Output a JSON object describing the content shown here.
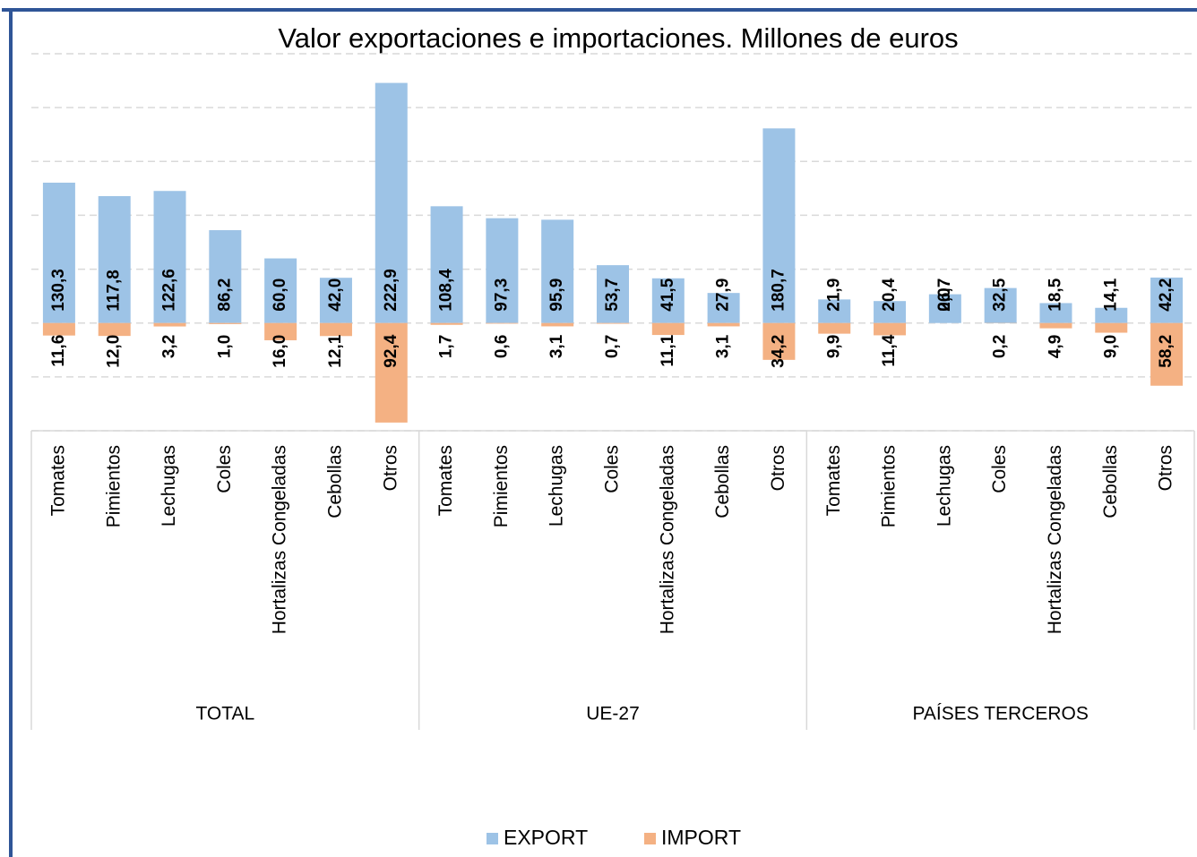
{
  "chart_data": {
    "type": "bar",
    "title": "Valor exportaciones e importaciones. Millones de euros",
    "categories": [
      "Tomates",
      "Pimientos",
      "Lechugas",
      "Coles",
      "Hortalizas Congeladas",
      "Cebollas",
      "Otros",
      "Tomates",
      "Pimientos",
      "Lechugas",
      "Coles",
      "Hortalizas Congeladas",
      "Cebollas",
      "Otros",
      "Tomates",
      "Pimientos",
      "Lechugas",
      "Coles",
      "Hortalizas Congeladas",
      "Cebollas",
      "Otros"
    ],
    "groups": [
      "TOTAL",
      "UE-27",
      "PAÍSES TERCEROS"
    ],
    "series": [
      {
        "name": "EXPORT",
        "color": "#9dc3e6",
        "values": [
          130.3,
          117.8,
          122.6,
          86.2,
          60.0,
          42.0,
          222.9,
          108.4,
          97.3,
          95.9,
          53.7,
          41.5,
          27.9,
          180.7,
          21.9,
          20.4,
          26.7,
          32.5,
          18.5,
          14.1,
          42.2
        ],
        "value_labels": [
          "130,3",
          "117,8",
          "122,6",
          "86,2",
          "60,0",
          "42,0",
          "222,9",
          "108,4",
          "97,3",
          "95,9",
          "53,7",
          "41,5",
          "27,9",
          "180,7",
          "21,9",
          "20,4",
          "26,7",
          "32,5",
          "18,5",
          "14,1",
          "42,2"
        ]
      },
      {
        "name": "IMPORT",
        "color": "#f4b183",
        "values": [
          -11.6,
          -12.0,
          -3.2,
          -1.0,
          -16.0,
          -12.1,
          -92.4,
          -1.7,
          -0.6,
          -3.1,
          -0.7,
          -11.1,
          -3.1,
          -34.2,
          -9.9,
          -11.4,
          0,
          -0.2,
          -4.9,
          -9.0,
          -58.2
        ],
        "value_labels": [
          "11,6",
          "12,0",
          "3,2",
          "1,0",
          "16,0",
          "12,1",
          "92,4",
          "1,7",
          "0,6",
          "3,1",
          "0,7",
          "11,1",
          "3,1",
          "34,2",
          "9,9",
          "11,4",
          "0,0",
          "0,2",
          "4,9",
          "9,0",
          "58,2"
        ]
      }
    ],
    "ylim": [
      -100,
      250
    ],
    "yticks": [
      -100,
      -50,
      0,
      50,
      100,
      150,
      200,
      250
    ],
    "grid": true,
    "legend": "bottom"
  }
}
